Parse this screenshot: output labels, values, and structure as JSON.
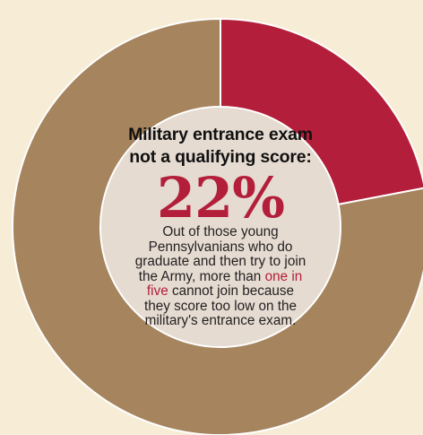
{
  "chart_data": {
    "type": "pie",
    "style": "donut",
    "categories": [
      "",
      ""
    ],
    "values": [
      22,
      78
    ],
    "unit": "%",
    "colors": [
      "#b31f3a",
      "#a5845e"
    ],
    "center_fill": "#e5dbd1",
    "title_line1": "Military entrance exam",
    "title_line2": "not a qualifying score:",
    "value_label": "22%",
    "description_before": "Out of those young Pennsylvanians who do graduate and then try to join the Army, more than ",
    "description_highlight": "one in five",
    "description_after": " cannot join because they score too low on the military's entrance exam."
  },
  "colors": {
    "background": "#f7ecd5",
    "accent": "#b31f3a"
  }
}
